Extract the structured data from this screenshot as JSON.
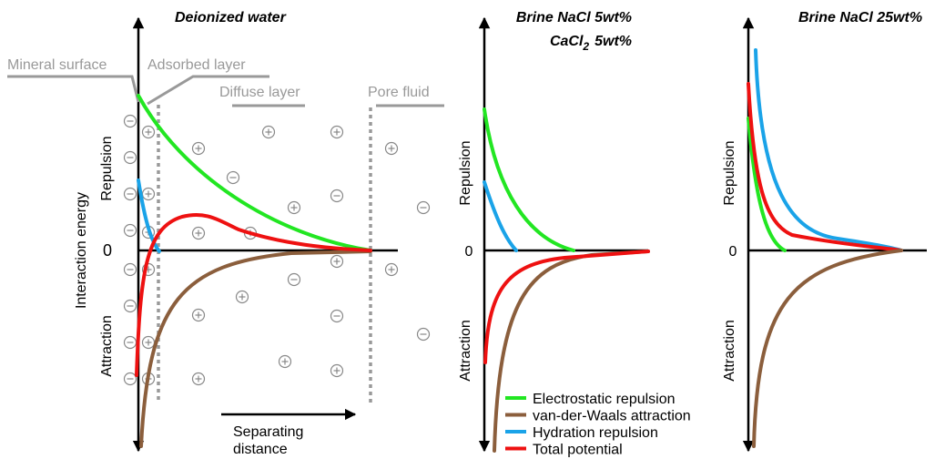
{
  "panels": [
    {
      "title": "Deionized water"
    },
    {
      "title": "Brine NaCl  5wt%",
      "title_line2": {
        "base": "CaCl",
        "sub": "2",
        "rest": "5wt%"
      }
    },
    {
      "title": "Brine NaCl 25wt%"
    }
  ],
  "axis": {
    "y_label": "Interaction energy",
    "repulsion": "Repulsion",
    "attraction": "Attraction",
    "zero": "0",
    "x_label": [
      "Separating",
      "distance"
    ]
  },
  "zones": {
    "mineral_surface": "Mineral surface",
    "adsorbed_layer": "Adsorbed layer",
    "diffuse_layer": "Diffuse layer",
    "pore_fluid": "Pore fluid"
  },
  "legend": [
    {
      "name": "Electrostatic repulsion",
      "color": "#22e622"
    },
    {
      "name": "van-der-Waals attraction",
      "color": "#8b5e3c"
    },
    {
      "name": "Hydration repulsion",
      "color": "#1aa3e8"
    },
    {
      "name": "Total potential",
      "color": "#ee1111"
    }
  ]
}
